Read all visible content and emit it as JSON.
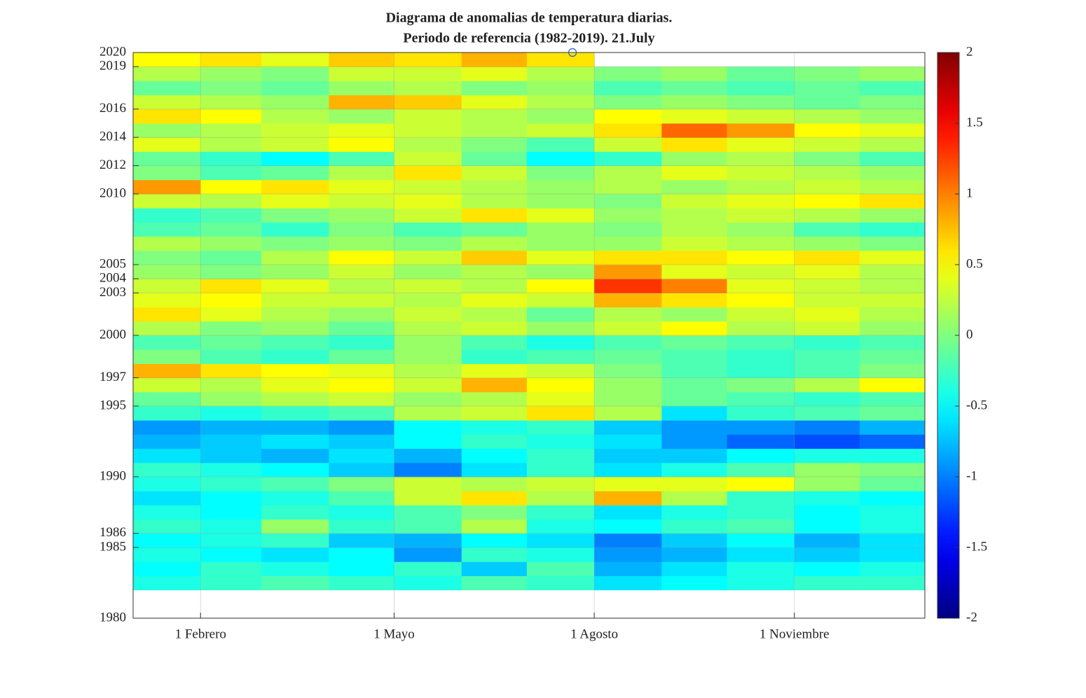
{
  "chart_data": {
    "type": "heatmap",
    "title": [
      "Diagrama de anomalias de temperatura diarias.",
      "Periodo de referencia (1982-2019). 21.July"
    ],
    "xlim": [
      1,
      365
    ],
    "ylim": [
      1980,
      2020
    ],
    "xticks": [
      {
        "value": 32,
        "label": "1 Febrero"
      },
      {
        "value": 121,
        "label": "1 Mayo"
      },
      {
        "value": 213,
        "label": "1 Agosto"
      },
      {
        "value": 305,
        "label": "1 Noviembre"
      }
    ],
    "yticks": [
      1980,
      1985,
      1986,
      1990,
      1995,
      1997,
      2000,
      2003,
      2004,
      2005,
      2010,
      2012,
      2014,
      2016,
      2019,
      2020
    ],
    "grid": true,
    "colormap": "jet",
    "clim": [
      -2,
      2
    ],
    "cticks": [
      -2,
      -1.5,
      -1,
      -0.5,
      0,
      0.5,
      1,
      1.5,
      2
    ],
    "xbins": [
      1,
      32,
      60,
      91,
      121,
      152,
      182,
      213,
      244,
      274,
      305,
      335,
      365
    ],
    "ybins": [
      1982,
      1983,
      1984,
      1985,
      1986,
      1987,
      1988,
      1989,
      1990,
      1991,
      1992,
      1993,
      1994,
      1995,
      1996,
      1997,
      1998,
      1999,
      2000,
      2001,
      2002,
      2003,
      2004,
      2005,
      2006,
      2007,
      2008,
      2009,
      2010,
      2011,
      2012,
      2013,
      2014,
      2015,
      2016,
      2017,
      2018,
      2019,
      2020
    ],
    "values": [
      [
        -0.4,
        -0.3,
        -0.2,
        -0.3,
        -0.4,
        -0.2,
        -0.3,
        -0.6,
        -0.5,
        -0.4,
        -0.3,
        -0.3
      ],
      [
        -0.5,
        -0.3,
        -0.4,
        -0.5,
        -0.3,
        -0.7,
        -0.2,
        -0.8,
        -0.6,
        -0.4,
        -0.5,
        -0.4
      ],
      [
        -0.4,
        -0.5,
        -0.6,
        -0.5,
        -0.9,
        -0.3,
        -0.4,
        -0.9,
        -0.8,
        -0.6,
        -0.7,
        -0.6
      ],
      [
        -0.5,
        -0.4,
        -0.3,
        -0.7,
        -0.8,
        -0.5,
        -0.6,
        -1.0,
        -0.7,
        -0.5,
        -0.8,
        -0.6
      ],
      [
        -0.3,
        -0.4,
        0.1,
        -0.3,
        -0.2,
        0.2,
        -0.4,
        -0.5,
        -0.3,
        -0.2,
        -0.5,
        -0.4
      ],
      [
        -0.4,
        -0.5,
        -0.3,
        -0.4,
        -0.2,
        0.0,
        -0.3,
        -0.6,
        -0.4,
        -0.3,
        -0.5,
        -0.4
      ],
      [
        -0.6,
        -0.5,
        -0.4,
        -0.2,
        0.3,
        0.6,
        0.2,
        0.8,
        0.2,
        -0.3,
        -0.4,
        -0.5
      ],
      [
        -0.4,
        -0.3,
        -0.2,
        0.0,
        0.3,
        0.2,
        0.3,
        0.4,
        0.4,
        0.5,
        0.1,
        -0.1
      ],
      [
        -0.3,
        -0.4,
        -0.5,
        -0.7,
        -1.0,
        -0.6,
        -0.3,
        -0.6,
        -0.4,
        -0.2,
        0.1,
        0.0
      ],
      [
        -0.6,
        -0.7,
        -0.8,
        -0.6,
        -0.8,
        -0.5,
        -0.3,
        -0.7,
        -0.7,
        -0.5,
        -0.4,
        -0.4
      ],
      [
        -0.8,
        -0.7,
        -0.6,
        -0.7,
        -0.5,
        -0.3,
        -0.4,
        -0.6,
        -0.9,
        -1.1,
        -1.2,
        -1.1
      ],
      [
        -0.9,
        -0.8,
        -0.8,
        -0.9,
        -0.5,
        -0.4,
        -0.3,
        -0.7,
        -0.9,
        -0.9,
        -1.0,
        -0.8
      ],
      [
        -0.3,
        -0.4,
        -0.3,
        -0.2,
        0.2,
        0.3,
        0.6,
        0.2,
        -0.6,
        -0.3,
        -0.2,
        -0.1
      ],
      [
        -0.1,
        0.1,
        0.2,
        0.3,
        0.1,
        0.2,
        0.4,
        0.1,
        -0.1,
        -0.2,
        -0.3,
        -0.2
      ],
      [
        0.3,
        0.2,
        0.4,
        0.5,
        0.3,
        0.8,
        0.5,
        0.1,
        -0.1,
        0.0,
        0.2,
        0.5
      ],
      [
        0.8,
        0.6,
        0.5,
        0.4,
        0.2,
        0.4,
        0.3,
        0.0,
        -0.2,
        -0.3,
        -0.2,
        0.0
      ],
      [
        0.0,
        -0.2,
        -0.3,
        -0.1,
        0.1,
        -0.3,
        -0.2,
        -0.1,
        -0.2,
        -0.3,
        -0.2,
        -0.1
      ],
      [
        -0.2,
        -0.1,
        -0.2,
        -0.3,
        0.1,
        -0.2,
        -0.4,
        -0.2,
        -0.1,
        -0.2,
        -0.3,
        -0.2
      ],
      [
        0.2,
        0.0,
        0.1,
        -0.1,
        0.2,
        0.3,
        0.1,
        0.3,
        0.5,
        0.2,
        0.3,
        0.1
      ],
      [
        0.6,
        0.4,
        0.2,
        0.1,
        0.3,
        0.2,
        -0.1,
        0.2,
        0.1,
        0.3,
        0.4,
        0.2
      ],
      [
        0.4,
        0.5,
        0.3,
        0.3,
        0.2,
        0.4,
        0.3,
        0.8,
        0.6,
        0.5,
        0.3,
        0.3
      ],
      [
        0.3,
        0.6,
        0.4,
        0.2,
        0.3,
        0.2,
        0.5,
        1.3,
        1.0,
        0.4,
        0.3,
        0.2
      ],
      [
        0.1,
        0.0,
        0.1,
        0.3,
        0.1,
        0.2,
        0.1,
        0.9,
        0.4,
        0.3,
        0.4,
        0.2
      ],
      [
        0.0,
        -0.1,
        0.2,
        0.5,
        0.3,
        0.7,
        0.4,
        0.6,
        0.6,
        0.5,
        0.6,
        0.4
      ],
      [
        0.2,
        0.1,
        0.0,
        0.1,
        0.0,
        0.2,
        0.1,
        0.1,
        0.3,
        0.2,
        0.1,
        0.0
      ],
      [
        -0.2,
        -0.1,
        -0.3,
        0.0,
        -0.2,
        -0.1,
        0.1,
        0.0,
        0.2,
        0.1,
        -0.2,
        -0.3
      ],
      [
        -0.3,
        -0.2,
        0.0,
        0.1,
        0.3,
        0.6,
        0.4,
        0.1,
        0.2,
        0.3,
        0.2,
        0.1
      ],
      [
        0.3,
        0.2,
        0.4,
        0.3,
        0.4,
        0.2,
        0.1,
        0.0,
        0.3,
        0.4,
        0.5,
        0.6
      ],
      [
        0.9,
        0.5,
        0.6,
        0.4,
        0.3,
        0.2,
        0.1,
        0.2,
        0.1,
        0.2,
        0.3,
        0.2
      ],
      [
        0.0,
        -0.2,
        -0.1,
        0.2,
        0.6,
        0.3,
        0.0,
        0.2,
        0.4,
        0.3,
        0.2,
        0.1
      ],
      [
        -0.1,
        -0.3,
        -0.5,
        -0.2,
        0.3,
        -0.1,
        -0.5,
        -0.3,
        0.1,
        0.2,
        0.0,
        -0.2
      ],
      [
        0.4,
        0.2,
        0.3,
        0.5,
        0.2,
        0.0,
        -0.2,
        0.3,
        0.6,
        0.4,
        0.3,
        0.2
      ],
      [
        0.1,
        0.2,
        0.3,
        0.4,
        0.3,
        0.2,
        0.3,
        0.6,
        1.1,
        0.9,
        0.5,
        0.4
      ],
      [
        0.6,
        0.5,
        0.2,
        0.1,
        0.3,
        0.2,
        0.1,
        0.5,
        0.4,
        0.3,
        0.2,
        0.1
      ],
      [
        0.3,
        0.2,
        0.1,
        0.8,
        0.7,
        0.4,
        0.2,
        0.0,
        0.1,
        0.0,
        -0.1,
        0.0
      ],
      [
        -0.1,
        0.0,
        -0.1,
        0.1,
        0.2,
        0.0,
        0.1,
        -0.2,
        -0.1,
        -0.2,
        -0.1,
        -0.2
      ],
      [
        0.2,
        0.1,
        0.0,
        0.3,
        0.3,
        0.4,
        0.2,
        0.0,
        0.1,
        -0.1,
        0.0,
        0.1
      ],
      [
        0.5,
        0.6,
        0.4,
        0.7,
        0.6,
        0.8,
        0.6,
        null,
        null,
        null,
        null,
        null
      ]
    ],
    "marker": {
      "x": 203,
      "y": 2020,
      "color": "#1f5fd6"
    }
  }
}
